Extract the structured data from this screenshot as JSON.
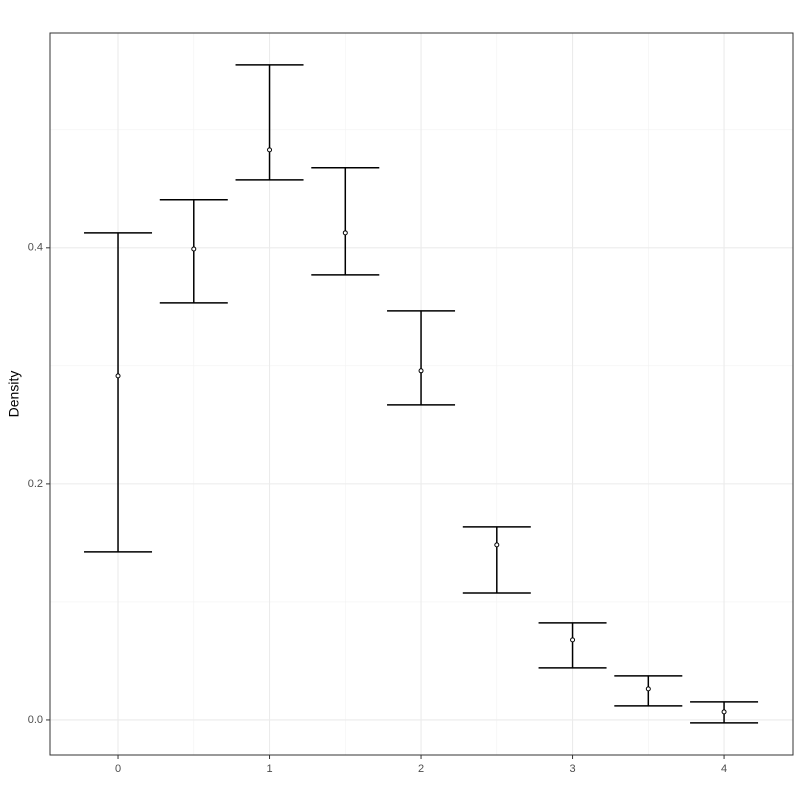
{
  "chart_data": {
    "type": "errorbar",
    "ylabel": "Density",
    "x": [
      0,
      0.5,
      1,
      1.5,
      2,
      2.5,
      3,
      3.5,
      4
    ],
    "series": [
      {
        "color": "#000000",
        "values": [
          0.2915,
          0.399,
          0.483,
          0.4127,
          0.2958,
          0.1483,
          0.0678,
          0.0263,
          0.0068
        ],
        "lower": [
          0.1424,
          0.3534,
          0.4576,
          0.3771,
          0.2669,
          0.1076,
          0.0441,
          0.0119,
          -0.0025
        ],
        "upper": [
          0.4127,
          0.4407,
          0.555,
          0.4678,
          0.3466,
          0.1636,
          0.0822,
          0.0373,
          0.0153
        ]
      }
    ],
    "xlim": [
      -0.449,
      4.455
    ],
    "xticks": [
      0,
      1,
      2,
      3,
      4
    ],
    "x_minor_ticks": [
      0.5,
      1.5,
      2.5,
      3.5
    ],
    "ylim": [
      -0.0297,
      0.582
    ],
    "yticks": [
      {
        "value": 0,
        "label": "0.0"
      },
      0.2,
      0.4
    ],
    "y_minor_ticks": [
      0.1,
      0.3,
      0.5
    ],
    "grid": true
  }
}
